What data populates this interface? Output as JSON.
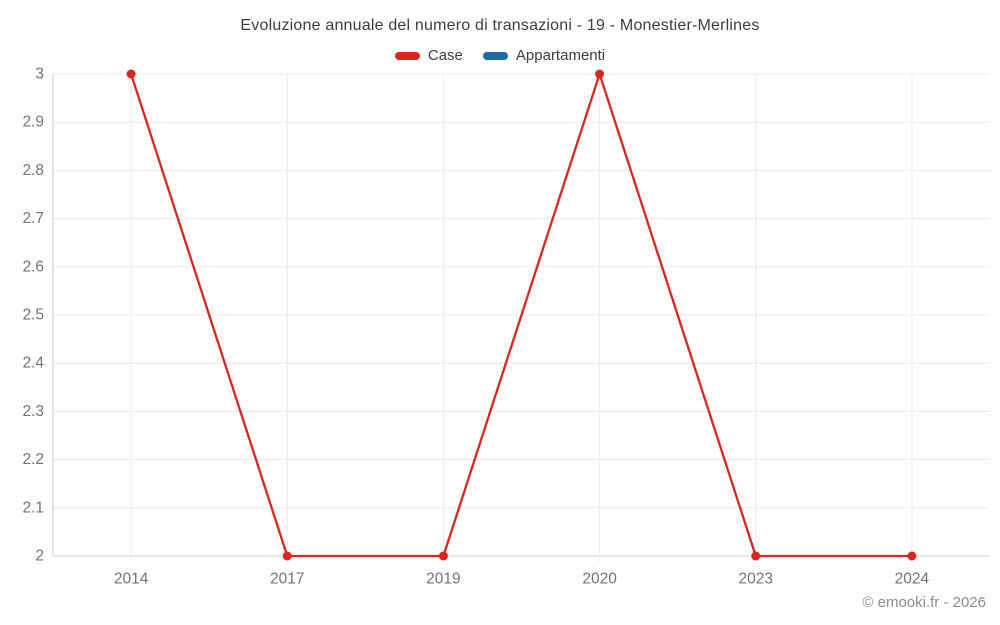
{
  "title": "Evoluzione annuale del numero di transazioni - 19 - Monestier-Merlines",
  "legend": {
    "items": [
      {
        "label": "Case",
        "color": "#d7271e"
      },
      {
        "label": "Appartamenti",
        "color": "#1b6ca8"
      }
    ]
  },
  "footer": {
    "text": "© emooki.fr - 2026"
  },
  "colors": {
    "background": "#ffffff",
    "grid_horizontal": "#e9e9e9",
    "grid_vertical": "#ececec",
    "axis_line": "#cccccc",
    "baseline": "#d2d2d2",
    "tick_label": "#737373",
    "title_text": "#3d3d3d",
    "footer_text": "#8c8c8c"
  },
  "chart_data": {
    "type": "line",
    "title": "Evoluzione annuale del numero di transazioni - 19 - Monestier-Merlines",
    "categories": [
      "2014",
      "2017",
      "2019",
      "2020",
      "2023",
      "2024"
    ],
    "series": [
      {
        "name": "Case",
        "color": "#d7271e",
        "values": [
          3,
          2,
          2,
          3,
          2,
          2
        ]
      },
      {
        "name": "Appartamenti",
        "color": "#1b6ca8",
        "values": []
      }
    ],
    "xlabel": "",
    "ylabel": "",
    "ylim": [
      2,
      3
    ],
    "y_tick_step": 0.1,
    "y_ticks": [
      "2",
      "2.1",
      "2.2",
      "2.3",
      "2.4",
      "2.5",
      "2.6",
      "2.7",
      "2.8",
      "2.9",
      "3"
    ],
    "grid": true,
    "legend_position": "top",
    "marker": "circle"
  }
}
